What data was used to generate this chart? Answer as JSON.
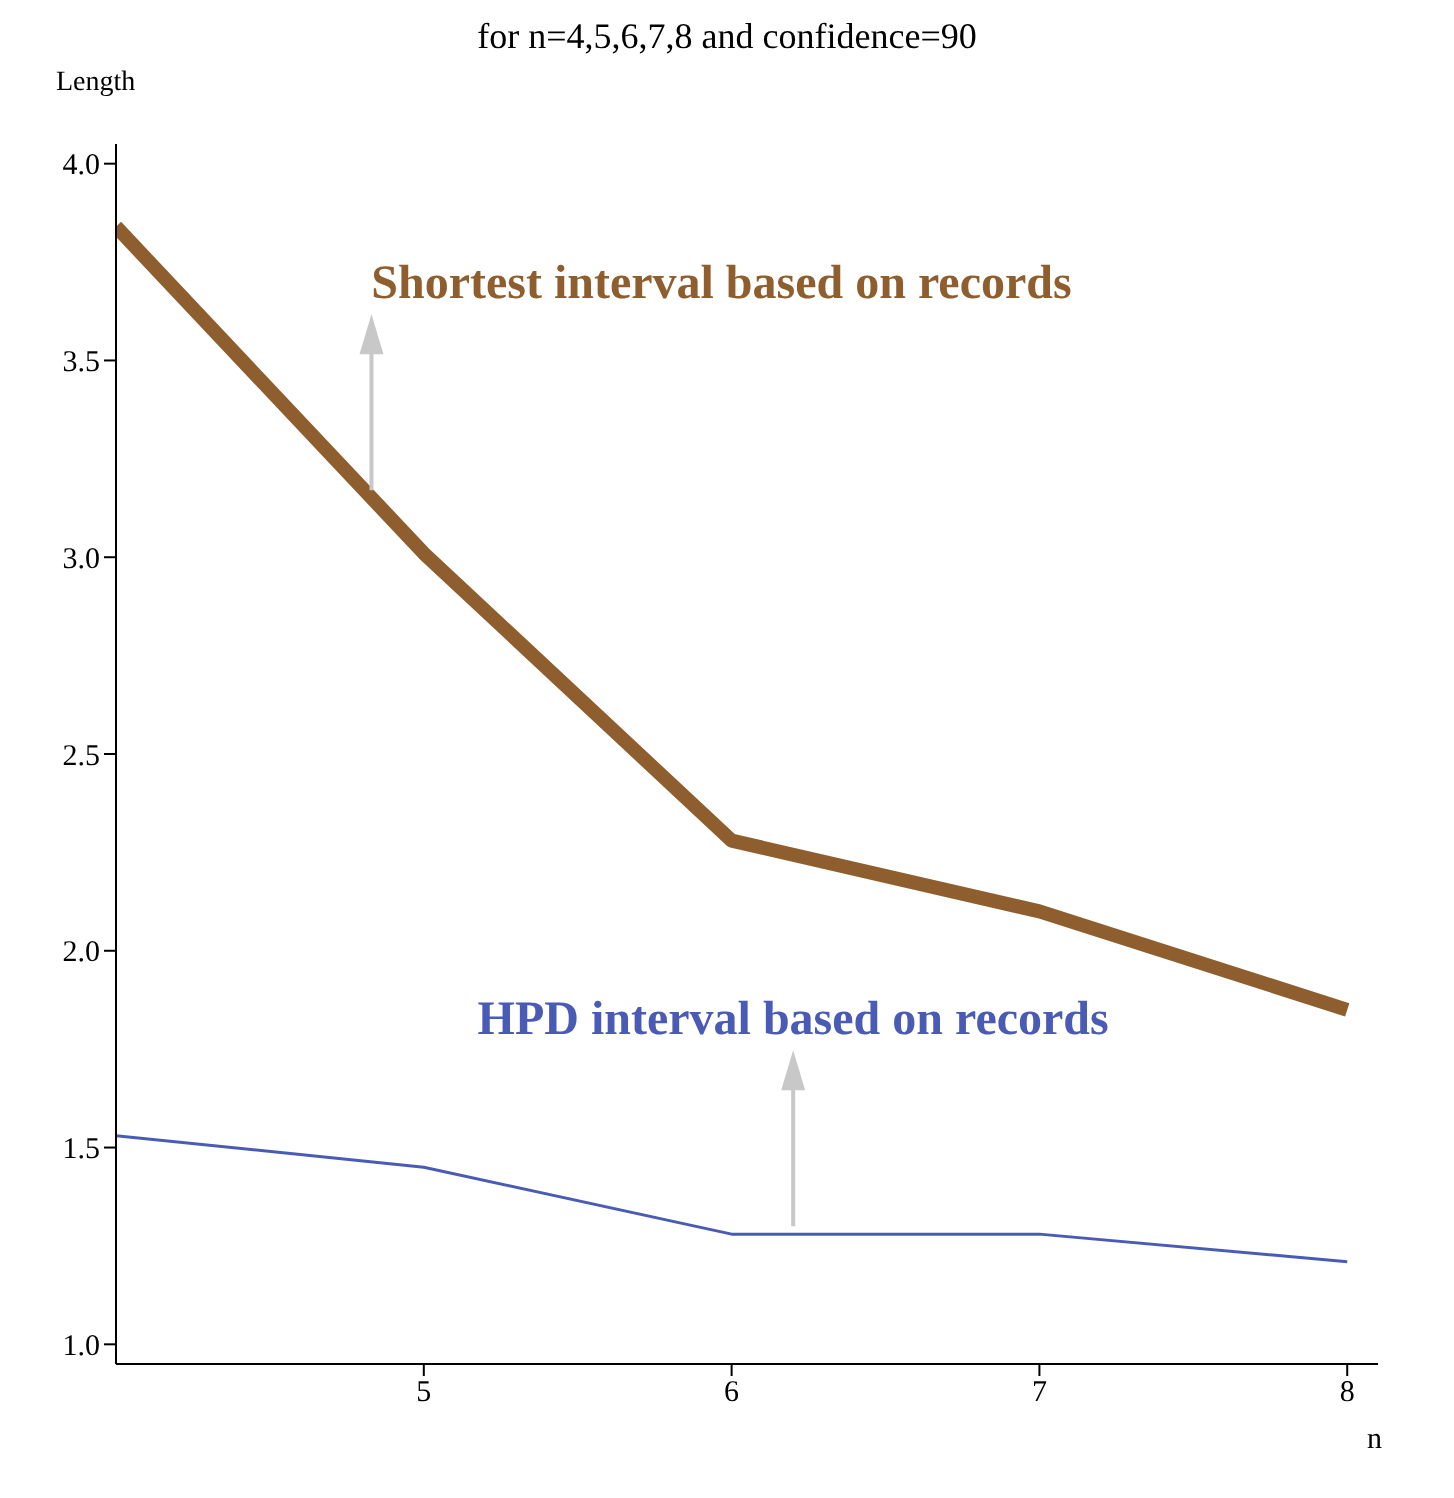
{
  "chart_data": {
    "type": "line",
    "title": "for n=4,5,6,7,8 and confidence=90",
    "xlabel": "n",
    "ylabel": "Length",
    "x": [
      4,
      5,
      6,
      7,
      8
    ],
    "series": [
      {
        "color": "#8f5e2e",
        "values": [
          3.84,
          3.01,
          2.28,
          2.1,
          1.85
        ]
      },
      {
        "color": "#4a5bb5",
        "values": [
          1.53,
          1.45,
          1.28,
          1.28,
          1.21
        ]
      }
    ],
    "annotations": [
      {
        "text": "Shortest interval based on records",
        "x": 4.83,
        "y": 3.15
      },
      {
        "text": "HPD interval based on records",
        "x": 6.2,
        "y": 1.28
      }
    ],
    "xlim": [
      4,
      8.1
    ],
    "xticks": [
      5,
      6,
      7,
      8
    ],
    "ylim": [
      0.95,
      4.05
    ],
    "yticks": [
      {
        "value": 1,
        "label": "1.0"
      },
      {
        "value": 1.5,
        "label": "1.5"
      },
      {
        "value": 2,
        "label": "2.0"
      },
      {
        "value": 2.5,
        "label": "2.5"
      },
      {
        "value": 3,
        "label": "3.0"
      },
      {
        "value": 3.5,
        "label": "3.5"
      },
      {
        "value": 4,
        "label": "4.0"
      }
    ],
    "grid": false,
    "legend": false,
    "marker": "none",
    "line_style": "solid"
  }
}
